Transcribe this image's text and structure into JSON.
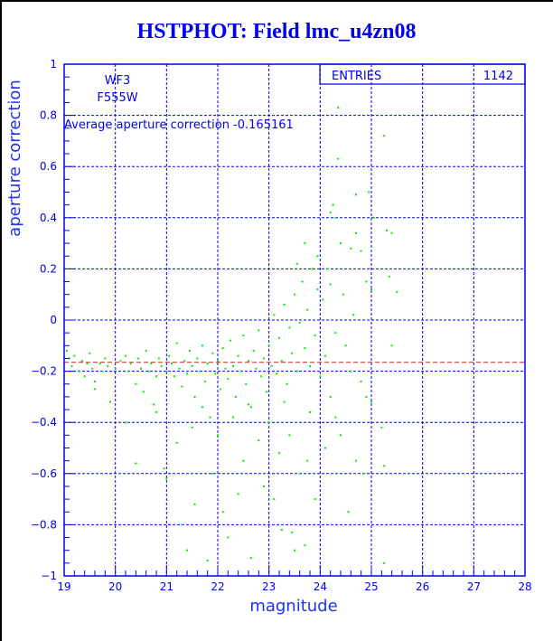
{
  "title": "HSTPHOT: Field lmc_u4zn08",
  "stats_box": {
    "label": "ENTRIES",
    "value": "1142"
  },
  "annotations": {
    "chip": "WF3",
    "filter": "F555W",
    "average_text": "Average aperture correction -0.165161"
  },
  "colors": {
    "axis": "#0000ee",
    "points": "#00ee00",
    "average_line": "#cc2222",
    "title": "#0000ee"
  },
  "chart_data": {
    "type": "scatter",
    "title": "HSTPHOT: Field lmc_u4zn08",
    "xlabel": "magnitude",
    "ylabel": "aperture correction",
    "xlim": [
      19,
      28
    ],
    "ylim": [
      -1,
      1
    ],
    "x_ticks": [
      "19",
      "20",
      "21",
      "22",
      "23",
      "24",
      "25",
      "26",
      "27",
      "28"
    ],
    "y_ticks": [
      "-1",
      "-0.8",
      "-0.6",
      "-0.4",
      "-0.2",
      "0",
      "0.2",
      "0.4",
      "0.6",
      "0.8",
      "1"
    ],
    "grid": true,
    "average_line": -0.165161,
    "entries": 1142,
    "points_note_sampled": true,
    "points": [
      [
        19.05,
        -0.12
      ],
      [
        19.1,
        -0.15
      ],
      [
        19.15,
        -0.18
      ],
      [
        19.2,
        -0.14
      ],
      [
        19.3,
        -0.2
      ],
      [
        19.35,
        -0.16
      ],
      [
        19.4,
        -0.22
      ],
      [
        19.45,
        -0.17
      ],
      [
        19.5,
        -0.13
      ],
      [
        19.55,
        -0.19
      ],
      [
        19.6,
        -0.24
      ],
      [
        19.7,
        -0.17
      ],
      [
        19.75,
        -0.2
      ],
      [
        19.8,
        -0.15
      ],
      [
        19.85,
        -0.18
      ],
      [
        19.9,
        -0.32
      ],
      [
        20.0,
        -0.19
      ],
      [
        20.1,
        -0.16
      ],
      [
        20.2,
        -0.14
      ],
      [
        20.25,
        -0.2
      ],
      [
        20.3,
        -0.17
      ],
      [
        20.4,
        -0.25
      ],
      [
        20.45,
        -0.15
      ],
      [
        20.5,
        -0.19
      ],
      [
        20.55,
        -0.28
      ],
      [
        20.6,
        -0.12
      ],
      [
        20.65,
        -0.2
      ],
      [
        20.7,
        -0.17
      ],
      [
        20.75,
        -0.33
      ],
      [
        20.8,
        -0.22
      ],
      [
        20.85,
        -0.15
      ],
      [
        20.9,
        -0.18
      ],
      [
        20.95,
        -0.58
      ],
      [
        21.0,
        -0.2
      ],
      [
        21.05,
        -0.14
      ],
      [
        21.1,
        -0.17
      ],
      [
        21.15,
        -0.22
      ],
      [
        21.2,
        -0.09
      ],
      [
        21.25,
        -0.19
      ],
      [
        21.3,
        -0.26
      ],
      [
        21.35,
        -0.16
      ],
      [
        21.4,
        -0.21
      ],
      [
        21.45,
        -0.12
      ],
      [
        21.5,
        -0.18
      ],
      [
        21.55,
        -0.3
      ],
      [
        21.6,
        -0.15
      ],
      [
        21.65,
        -0.2
      ],
      [
        21.7,
        -0.1
      ],
      [
        21.75,
        -0.24
      ],
      [
        21.8,
        -0.17
      ],
      [
        21.85,
        -0.38
      ],
      [
        21.9,
        -0.13
      ],
      [
        21.95,
        -0.21
      ],
      [
        22.0,
        -0.16
      ],
      [
        22.05,
        -0.27
      ],
      [
        22.1,
        -0.11
      ],
      [
        22.15,
        -0.19
      ],
      [
        22.2,
        -0.23
      ],
      [
        22.25,
        -0.08
      ],
      [
        22.3,
        -0.18
      ],
      [
        22.35,
        -0.3
      ],
      [
        22.4,
        -0.14
      ],
      [
        22.45,
        -0.2
      ],
      [
        22.5,
        -0.06
      ],
      [
        22.55,
        -0.25
      ],
      [
        22.6,
        -0.16
      ],
      [
        22.65,
        -0.34
      ],
      [
        22.7,
        -0.12
      ],
      [
        22.75,
        -0.19
      ],
      [
        22.8,
        -0.04
      ],
      [
        22.85,
        -0.22
      ],
      [
        22.9,
        -0.15
      ],
      [
        22.95,
        -0.28
      ],
      [
        23.0,
        -0.1
      ],
      [
        23.05,
        -0.18
      ],
      [
        23.1,
        0.02
      ],
      [
        23.15,
        -0.21
      ],
      [
        23.2,
        -0.07
      ],
      [
        23.25,
        -0.16
      ],
      [
        23.3,
        0.06
      ],
      [
        23.35,
        -0.25
      ],
      [
        23.4,
        -0.03
      ],
      [
        23.45,
        -0.13
      ],
      [
        23.5,
        0.1
      ],
      [
        23.55,
        -0.2
      ],
      [
        23.6,
        -0.01
      ],
      [
        23.65,
        0.15
      ],
      [
        23.7,
        -0.11
      ],
      [
        23.75,
        0.04
      ],
      [
        23.8,
        -0.18
      ],
      [
        23.85,
        0.2
      ],
      [
        23.9,
        -0.06
      ],
      [
        23.95,
        0.12
      ],
      [
        24.0,
        -0.22
      ],
      [
        24.05,
        0.08
      ],
      [
        24.1,
        -0.14
      ],
      [
        24.15,
        0.2
      ],
      [
        24.2,
        0.42
      ],
      [
        24.25,
        0.45
      ],
      [
        24.3,
        0.4
      ],
      [
        24.35,
        0.63
      ],
      [
        24.35,
        0.83
      ],
      [
        24.4,
        0.3
      ],
      [
        24.5,
        -0.1
      ],
      [
        24.6,
        0.28
      ],
      [
        24.7,
        0.49
      ],
      [
        24.7,
        0.34
      ],
      [
        24.8,
        0.27
      ],
      [
        24.9,
        0.15
      ],
      [
        24.95,
        0.5
      ],
      [
        25.0,
        0.12
      ],
      [
        25.05,
        0.4
      ],
      [
        25.25,
        0.72
      ],
      [
        25.3,
        0.35
      ],
      [
        25.4,
        0.34
      ],
      [
        25.35,
        0.17
      ],
      [
        25.5,
        0.11
      ],
      [
        25.4,
        -0.1
      ],
      [
        24.9,
        -0.3
      ],
      [
        25.0,
        -0.32
      ],
      [
        25.2,
        -0.42
      ],
      [
        24.7,
        -0.55
      ],
      [
        25.25,
        -0.57
      ],
      [
        24.85,
        -0.6
      ],
      [
        24.55,
        -0.75
      ],
      [
        25.25,
        -0.95
      ],
      [
        21.8,
        -0.94
      ],
      [
        22.65,
        -0.93
      ],
      [
        23.25,
        -0.82
      ],
      [
        23.45,
        -0.83
      ],
      [
        23.7,
        -0.88
      ],
      [
        23.5,
        -0.9
      ],
      [
        21.3,
        -0.8
      ],
      [
        21.55,
        -0.72
      ],
      [
        22.1,
        -0.75
      ],
      [
        22.4,
        -0.68
      ],
      [
        23.1,
        -0.7
      ],
      [
        23.9,
        -0.7
      ],
      [
        21.0,
        -0.62
      ],
      [
        21.9,
        -0.6
      ],
      [
        22.5,
        -0.55
      ],
      [
        23.2,
        -0.52
      ],
      [
        23.6,
        -0.6
      ],
      [
        20.4,
        -0.56
      ],
      [
        21.2,
        -0.48
      ],
      [
        22.0,
        -0.45
      ],
      [
        22.8,
        -0.47
      ],
      [
        23.4,
        -0.45
      ],
      [
        24.1,
        -0.5
      ],
      [
        20.2,
        -0.4
      ],
      [
        21.5,
        -0.42
      ],
      [
        22.3,
        -0.38
      ],
      [
        23.0,
        -0.4
      ],
      [
        23.8,
        -0.36
      ],
      [
        24.3,
        -0.38
      ],
      [
        20.8,
        -0.36
      ],
      [
        21.7,
        -0.34
      ],
      [
        22.6,
        -0.33
      ],
      [
        23.3,
        -0.32
      ],
      [
        24.2,
        -0.3
      ],
      [
        19.6,
        -0.27
      ],
      [
        22.9,
        -0.65
      ],
      [
        22.2,
        -0.85
      ],
      [
        21.4,
        -0.9
      ],
      [
        23.75,
        -0.55
      ],
      [
        24.4,
        -0.45
      ],
      [
        24.6,
        -0.2
      ],
      [
        24.8,
        -0.24
      ],
      [
        24.3,
        -0.05
      ],
      [
        24.45,
        0.1
      ],
      [
        24.65,
        0.02
      ],
      [
        24.2,
        0.14
      ],
      [
        23.55,
        0.22
      ],
      [
        23.7,
        0.3
      ],
      [
        23.95,
        0.25
      ]
    ]
  }
}
